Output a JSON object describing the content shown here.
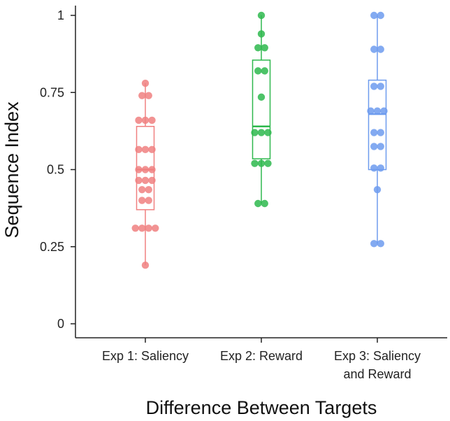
{
  "chart_data": {
    "type": "box",
    "title": "",
    "xlabel": "Difference Between Targets",
    "ylabel": "Sequence Index",
    "ylim": [
      0,
      1
    ],
    "yticks": [
      {
        "value": 0,
        "label": "0"
      },
      {
        "value": 0.25,
        "label": "0.25"
      },
      {
        "value": 0.5,
        "label": "0.5"
      },
      {
        "value": 0.75,
        "label": "0.75"
      },
      {
        "value": 1,
        "label": "1"
      }
    ],
    "categories": [
      {
        "lines": [
          "Exp 1: Saliency"
        ]
      },
      {
        "lines": [
          "Exp 2: Reward"
        ]
      },
      {
        "lines": [
          "Exp 3: Saliency",
          "and Reward"
        ]
      }
    ],
    "series": [
      {
        "name": "Exp 1: Saliency",
        "color": "#F08080",
        "box": {
          "min": 0.19,
          "q1": 0.37,
          "median": 0.5,
          "q3": 0.64,
          "max": 0.78
        },
        "points": [
          0.78,
          0.74,
          0.74,
          0.66,
          0.66,
          0.66,
          0.565,
          0.565,
          0.565,
          0.5,
          0.5,
          0.5,
          0.465,
          0.465,
          0.465,
          0.435,
          0.435,
          0.4,
          0.4,
          0.31,
          0.31,
          0.31,
          0.31,
          0.19
        ]
      },
      {
        "name": "Exp 2: Reward",
        "color": "#2EB84D",
        "box": {
          "min": 0.39,
          "q1": 0.535,
          "median": 0.64,
          "q3": 0.855,
          "max": 1.0
        },
        "points": [
          1.0,
          0.94,
          0.895,
          0.895,
          0.82,
          0.82,
          0.735,
          0.62,
          0.62,
          0.62,
          0.52,
          0.52,
          0.52,
          0.39,
          0.39
        ]
      },
      {
        "name": "Exp 3: Saliency and Reward",
        "color": "#6D9BEE",
        "box": {
          "min": 0.26,
          "q1": 0.5,
          "median": 0.68,
          "q3": 0.79,
          "max": 1.0
        },
        "points": [
          1.0,
          1.0,
          0.89,
          0.89,
          0.77,
          0.77,
          0.69,
          0.69,
          0.69,
          0.62,
          0.62,
          0.575,
          0.575,
          0.505,
          0.505,
          0.435,
          0.26,
          0.26
        ]
      }
    ]
  }
}
